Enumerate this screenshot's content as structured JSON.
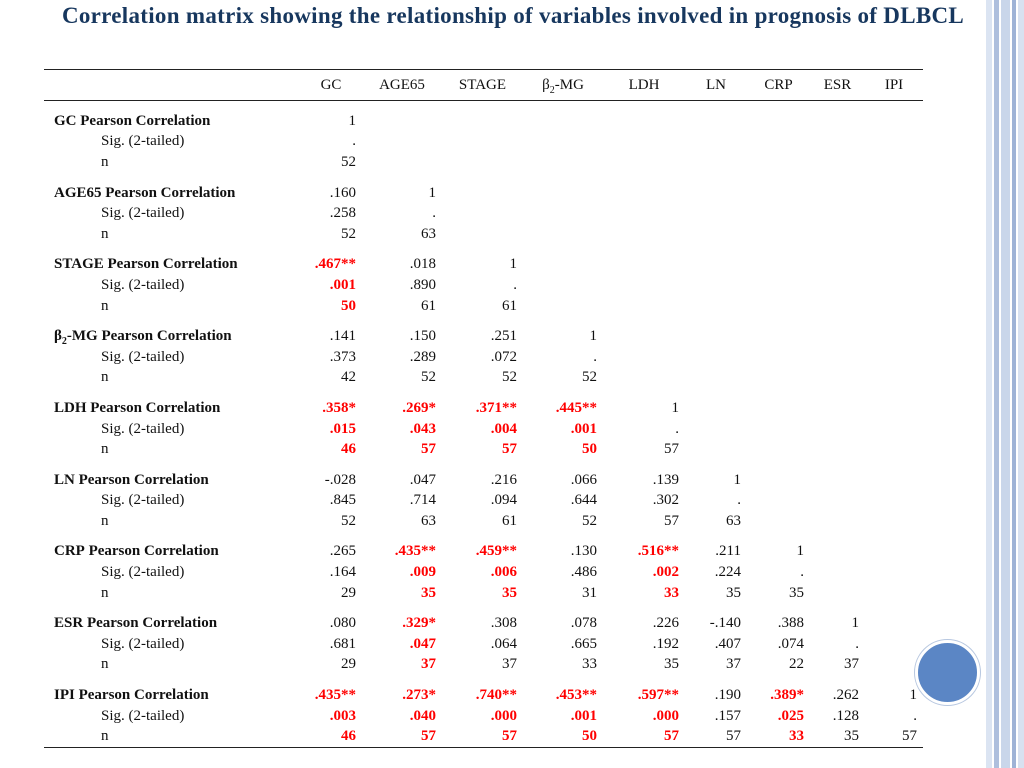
{
  "title": "Correlation matrix showing the relationship of variables involved in prognosis of DLBCL",
  "colors": {
    "title": "#17375e",
    "significant": "#ff0000",
    "accent_circle": "#5b86c5"
  },
  "columns": [
    {
      "pre": "GC",
      "sub": "",
      "post": ""
    },
    {
      "pre": "AGE65",
      "sub": "",
      "post": ""
    },
    {
      "pre": "STAGE",
      "sub": "",
      "post": ""
    },
    {
      "pre": "β",
      "sub": "2",
      "post": "-MG"
    },
    {
      "pre": "LDH",
      "sub": "",
      "post": ""
    },
    {
      "pre": "LN",
      "sub": "",
      "post": ""
    },
    {
      "pre": "CRP",
      "sub": "",
      "post": ""
    },
    {
      "pre": "ESR",
      "sub": "",
      "post": ""
    },
    {
      "pre": "IPI",
      "sub": "",
      "post": ""
    }
  ],
  "stat_labels": [
    "Pearson Correlation",
    "Sig. (2-tailed)",
    "n"
  ],
  "variables": [
    {
      "name_pre": "GC",
      "name_sub": "",
      "name_post": "",
      "r": [
        "1"
      ],
      "p": [
        "."
      ],
      "n": [
        "52"
      ],
      "sig": [
        false
      ]
    },
    {
      "name_pre": "AGE65",
      "name_sub": "",
      "name_post": "",
      "r": [
        ".160",
        "1"
      ],
      "p": [
        ".258",
        "."
      ],
      "n": [
        "52",
        "63"
      ],
      "sig": [
        false,
        false
      ]
    },
    {
      "name_pre": "STAGE",
      "name_sub": "",
      "name_post": "",
      "r": [
        ".467**",
        ".018",
        "1"
      ],
      "p": [
        ".001",
        ".890",
        "."
      ],
      "n": [
        "50",
        "61",
        "61"
      ],
      "sig": [
        true,
        false,
        false
      ]
    },
    {
      "name_pre": "β",
      "name_sub": "2",
      "name_post": "-MG",
      "r": [
        ".141",
        ".150",
        ".251",
        "1"
      ],
      "p": [
        ".373",
        ".289",
        ".072",
        "."
      ],
      "n": [
        "42",
        "52",
        "52",
        "52"
      ],
      "sig": [
        false,
        false,
        false,
        false
      ]
    },
    {
      "name_pre": "LDH",
      "name_sub": "",
      "name_post": "",
      "r": [
        ".358*",
        ".269*",
        ".371**",
        ".445**",
        "1"
      ],
      "p": [
        ".015",
        ".043",
        ".004",
        ".001",
        "."
      ],
      "n": [
        "46",
        "57",
        "57",
        "50",
        "57"
      ],
      "sig": [
        true,
        true,
        true,
        true,
        false
      ]
    },
    {
      "name_pre": "LN",
      "name_sub": "",
      "name_post": "",
      "r": [
        "-.028",
        ".047",
        ".216",
        ".066",
        ".139",
        "1"
      ],
      "p": [
        ".845",
        ".714",
        ".094",
        ".644",
        ".302",
        "."
      ],
      "n": [
        "52",
        "63",
        "61",
        "52",
        "57",
        "63"
      ],
      "sig": [
        false,
        false,
        false,
        false,
        false,
        false
      ]
    },
    {
      "name_pre": "CRP",
      "name_sub": "",
      "name_post": "",
      "r": [
        ".265",
        ".435**",
        ".459**",
        ".130",
        ".516**",
        ".211",
        "1"
      ],
      "p": [
        ".164",
        ".009",
        ".006",
        ".486",
        ".002",
        ".224",
        "."
      ],
      "n": [
        "29",
        "35",
        "35",
        "31",
        "33",
        "35",
        "35"
      ],
      "sig": [
        false,
        true,
        true,
        false,
        true,
        false,
        false
      ]
    },
    {
      "name_pre": "ESR",
      "name_sub": "",
      "name_post": "",
      "r": [
        ".080",
        ".329*",
        ".308",
        ".078",
        ".226",
        "-.140",
        ".388",
        "1"
      ],
      "p": [
        ".681",
        ".047",
        ".064",
        ".665",
        ".192",
        ".407",
        ".074",
        "."
      ],
      "n": [
        "29",
        "37",
        "37",
        "33",
        "35",
        "37",
        "22",
        "37"
      ],
      "sig": [
        false,
        true,
        false,
        false,
        false,
        false,
        false,
        false
      ]
    },
    {
      "name_pre": "IPI",
      "name_sub": "",
      "name_post": "",
      "r": [
        ".435**",
        ".273*",
        ".740**",
        ".453**",
        ".597**",
        ".190",
        ".389*",
        ".262",
        "1"
      ],
      "p": [
        ".003",
        ".040",
        ".000",
        ".001",
        ".000",
        ".157",
        ".025",
        ".128",
        "."
      ],
      "n": [
        "46",
        "57",
        "57",
        "50",
        "57",
        "57",
        "33",
        "35",
        "57"
      ],
      "sig": [
        true,
        true,
        true,
        true,
        true,
        false,
        true,
        false,
        false
      ]
    }
  ]
}
